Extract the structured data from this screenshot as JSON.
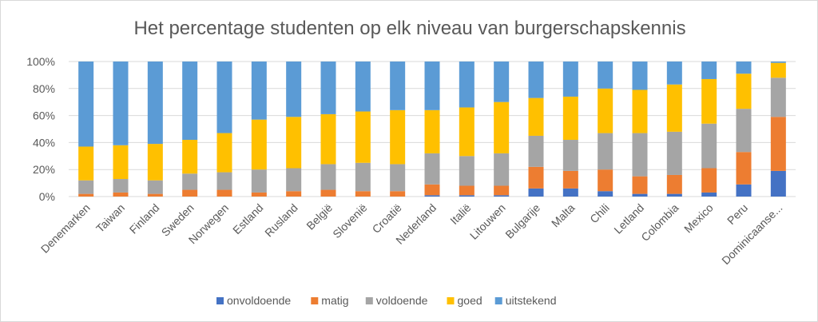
{
  "chart_data": {
    "type": "bar",
    "stacked": true,
    "percent": true,
    "title": "Het percentage studenten op elk niveau van burgerschapskennis",
    "xlabel": "",
    "ylabel": "",
    "ylim": [
      0,
      100
    ],
    "yticks": [
      "0%",
      "20%",
      "40%",
      "60%",
      "80%",
      "100%"
    ],
    "grid": true,
    "legend_position": "bottom",
    "categories": [
      "Denemarken",
      "Taiwan",
      "Finland",
      "Sweden",
      "Norwegen",
      "Estland",
      "Rusland",
      "België",
      "Slovenië",
      "Croatië",
      "Nederland",
      "Italië",
      "Litouwen",
      "Bulgarije",
      "Malta",
      "Chili",
      "Letland",
      "Colombia",
      "Mexico",
      "Peru",
      "Dominicaanse..."
    ],
    "series": [
      {
        "name": "onvoldoende",
        "color": "#4472c4",
        "values": [
          0,
          0,
          0,
          0,
          0,
          0,
          0,
          0,
          0,
          0,
          1,
          1,
          1,
          6,
          6,
          4,
          2,
          2,
          3,
          9,
          19
        ]
      },
      {
        "name": "matig",
        "color": "#ed7d31",
        "values": [
          2,
          3,
          2,
          5,
          5,
          3,
          4,
          5,
          4,
          4,
          8,
          7,
          7,
          16,
          13,
          16,
          13,
          14,
          18,
          24,
          40
        ]
      },
      {
        "name": "voldoende",
        "color": "#a5a5a5",
        "values": [
          10,
          10,
          10,
          12,
          13,
          17,
          17,
          19,
          21,
          20,
          23,
          22,
          24,
          23,
          23,
          27,
          32,
          32,
          33,
          32,
          29
        ]
      },
      {
        "name": "goed",
        "color": "#ffc000",
        "values": [
          25,
          25,
          27,
          25,
          29,
          37,
          38,
          37,
          38,
          40,
          32,
          36,
          38,
          28,
          32,
          33,
          32,
          35,
          33,
          26,
          11
        ]
      },
      {
        "name": "uitstekend",
        "color": "#5b9bd5",
        "values": [
          63,
          62,
          61,
          58,
          53,
          43,
          41,
          39,
          37,
          36,
          36,
          34,
          30,
          27,
          26,
          20,
          21,
          17,
          13,
          9,
          1
        ]
      }
    ]
  }
}
